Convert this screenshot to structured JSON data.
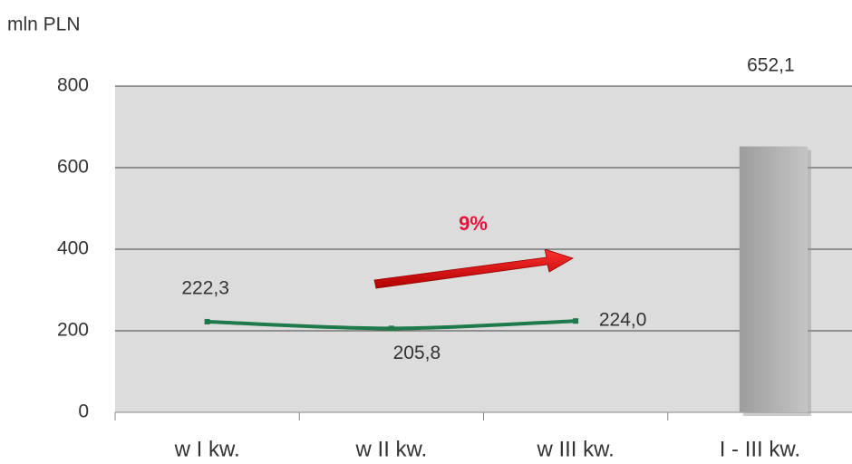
{
  "chart_data": {
    "type": "combo",
    "y_label": "mln PLN",
    "categories": [
      "w I kw.",
      "w II kw.",
      "w III kw.",
      "I - III kw."
    ],
    "series": [
      {
        "type": "line",
        "color": "#1e7a4a",
        "values": [
          222.3,
          205.8,
          224.0,
          null
        ],
        "value_labels": [
          "222,3",
          "205,8",
          "224,0",
          null
        ]
      },
      {
        "type": "bar",
        "color": "#aaaaaa",
        "values": [
          null,
          null,
          null,
          652.1
        ],
        "value_labels": [
          null,
          null,
          null,
          "652,1"
        ]
      }
    ],
    "annotation": "9%",
    "ylim": [
      0,
      800
    ],
    "yticks": [
      0,
      200,
      400,
      600,
      800
    ],
    "grid": true
  }
}
